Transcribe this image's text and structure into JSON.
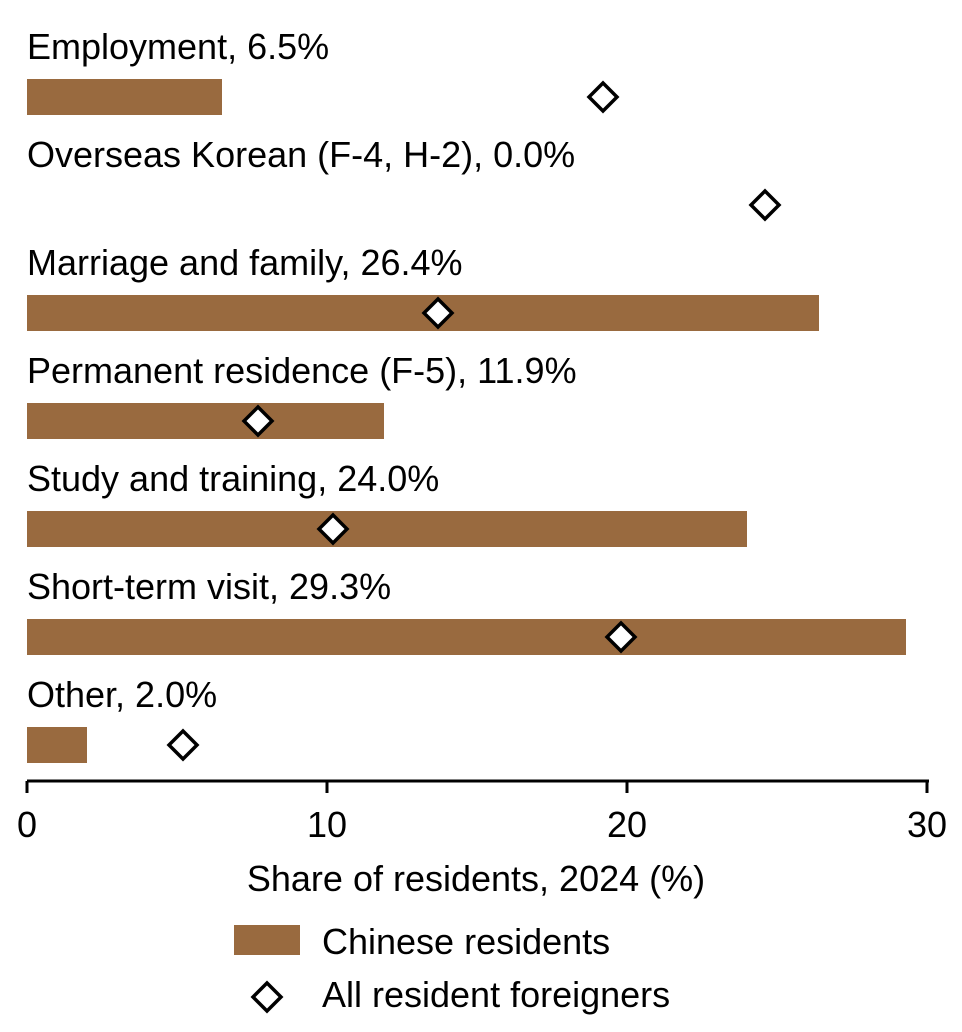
{
  "chart_data": {
    "type": "bar",
    "orientation": "horizontal",
    "categories": [
      "Employment",
      "Overseas Korean (F-4, H-2)",
      "Marriage and family",
      "Permanent residence (F-5)",
      "Study and training",
      "Short-term visit",
      "Other"
    ],
    "category_labels": [
      "Employment, 6.5%",
      "Overseas Korean (F-4, H-2), 0.0%",
      "Marriage and family, 26.4%",
      "Permanent residence (F-5), 11.9%",
      "Study and training, 24.0%",
      "Short-term visit, 29.3%",
      "Other, 2.0%"
    ],
    "series": [
      {
        "name": "Chinese residents",
        "type": "bar",
        "color": "#996a3f",
        "values": [
          6.5,
          0.0,
          26.4,
          11.9,
          24.0,
          29.3,
          2.0
        ]
      },
      {
        "name": "All resident foreigners",
        "type": "diamond-marker",
        "color": "#000000",
        "values": [
          19.2,
          24.6,
          13.7,
          7.7,
          10.2,
          19.8,
          5.2
        ]
      }
    ],
    "xlabel": "Share of residents, 2024 (%)",
    "xlim": [
      0,
      30
    ],
    "xticks": [
      0,
      10,
      20,
      30
    ],
    "grid": false,
    "legend_position": "bottom-center"
  }
}
